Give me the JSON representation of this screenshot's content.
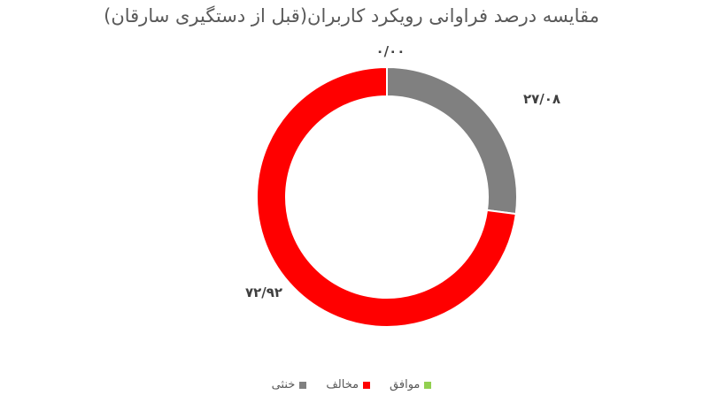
{
  "chart_data": {
    "type": "pie",
    "variant": "donut",
    "title": "مقایسه درصد فراوانی رویکرد کاربران(قبل از دستگیری سارقان)",
    "categories": [
      "موافق",
      "مخالف",
      "خنثی"
    ],
    "values": [
      0.0,
      72.92,
      27.08
    ],
    "data_labels": [
      "۰/۰۰",
      "۷۲/۹۲",
      "۲۷/۰۸"
    ],
    "colors": [
      "#92D050",
      "#FF0000",
      "#808080"
    ],
    "legend_position": "bottom",
    "legend_order": [
      "خنثی",
      "مخالف",
      "موافق"
    ]
  }
}
